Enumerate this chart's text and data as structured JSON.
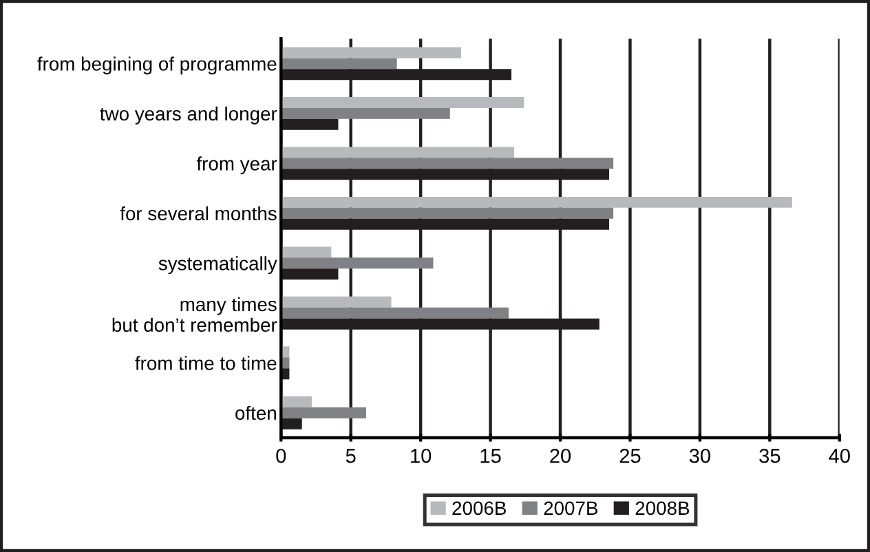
{
  "chart_data": {
    "type": "bar",
    "orientation": "horizontal",
    "categories": [
      "from begining of programme",
      "two years and longer",
      "from year",
      "for several months",
      "systematically",
      "many times\nbut don’t remember",
      "from time to time",
      "often"
    ],
    "series": [
      {
        "name": "2006B",
        "color": "#b8b9bd",
        "values": [
          12.9,
          17.4,
          16.7,
          36.6,
          3.6,
          7.9,
          0.6,
          2.2
        ]
      },
      {
        "name": "2007B",
        "color": "#808185",
        "values": [
          8.3,
          12.1,
          23.8,
          23.8,
          10.9,
          16.3,
          0.6,
          6.1
        ]
      },
      {
        "name": "2008B",
        "color": "#231f20",
        "values": [
          16.5,
          4.1,
          23.5,
          23.5,
          4.1,
          22.8,
          0.6,
          1.5
        ]
      }
    ],
    "xlim": [
      0,
      40
    ],
    "xticks": [
      0,
      5,
      10,
      15,
      20,
      25,
      30,
      35,
      40
    ],
    "grid": "x",
    "legend": "bottom"
  }
}
